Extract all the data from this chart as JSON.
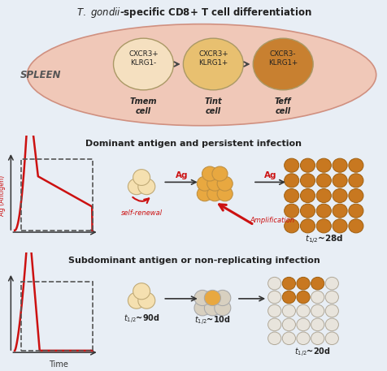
{
  "title_top": "T. gondii-specific CD8+ T cell differentiation",
  "spleen_label": "SPLEEN",
  "cell1_label": "CXCR3+\nKLRG1-",
  "cell2_label": "CXCR3+\nKLRG1+",
  "cell3_label": "CXCR3-\nKLRG1+",
  "cell1_name": "Tmem\ncell",
  "cell2_name": "Tint\ncell",
  "cell3_name": "Teff\ncell",
  "cell1_color": "#f5e0c0",
  "cell2_color": "#e8c070",
  "cell3_color": "#c88030",
  "spleen_fill": "#f0c8b8",
  "spleen_edge": "#d09080",
  "top_bg": "#e8eef5",
  "mid_bg": "#d0e8f5",
  "bot_bg": "#c8e2f0",
  "panel2_title": "Dominant antigen and persistent infection",
  "panel3_title": "Subdominant antigen or non-replicating infection",
  "red_color": "#cc1111",
  "dark_orange": "#c87820",
  "mid_orange": "#e8a840",
  "light_orange": "#f0cc80",
  "very_light_orange": "#f5e0b0",
  "gray_light": "#d8d0c0",
  "gray_mid": "#c8c0b0",
  "white_gray": "#e8e4dc",
  "arrow_dark": "#444444",
  "t12_28": "t_{1/2}~28d",
  "t12_90": "t_{1/2}~90d",
  "t12_10": "t_{1/2}~10d",
  "t12_20": "t_{1/2}~20d"
}
